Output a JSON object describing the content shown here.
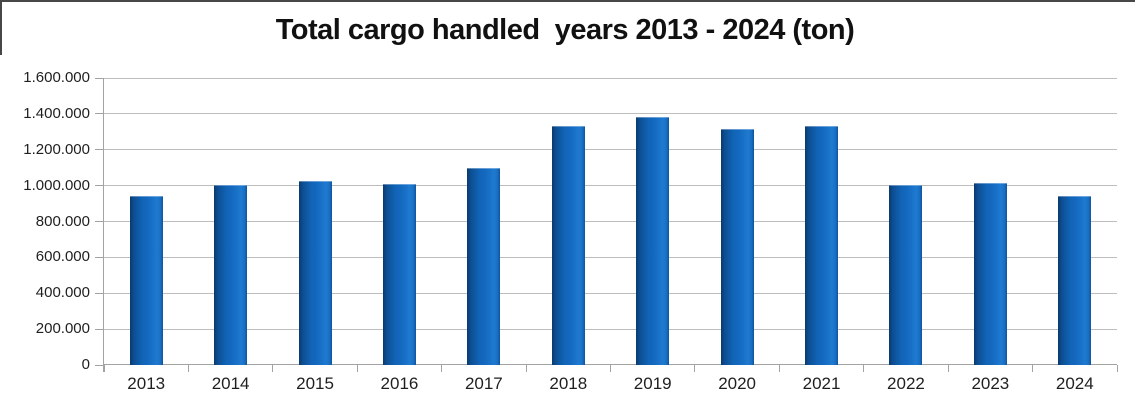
{
  "chart_data": {
    "type": "bar",
    "title": "Total cargo handled  years 2013 - 2024 (ton)",
    "categories": [
      "2013",
      "2014",
      "2015",
      "2016",
      "2017",
      "2018",
      "2019",
      "2020",
      "2021",
      "2022",
      "2023",
      "2024"
    ],
    "values": [
      940000,
      1005000,
      1025000,
      1010000,
      1100000,
      1335000,
      1380000,
      1315000,
      1330000,
      1005000,
      1015000,
      945000
    ],
    "xlabel": "",
    "ylabel": "",
    "ylim": [
      0,
      1600000
    ],
    "y_tick_step": 200000,
    "y_tick_labels": [
      "0",
      "200.000",
      "400.000",
      "600.000",
      "800.000",
      "1.000.000",
      "1.200.000",
      "1.400.000",
      "1.600.000"
    ],
    "grid": true,
    "legend_position": "none",
    "colors": {
      "bar_main": "#1164B6",
      "bar_dark_edge": "#0A3A6E",
      "bar_bright_edge": "#1E7AD0",
      "gridline": "#BDBDBD",
      "axis": "#A3A3A3",
      "label_text": "#1F1F1F",
      "title_text": "#111111",
      "background": "#FFFFFF",
      "frame_border": "#474747"
    }
  }
}
